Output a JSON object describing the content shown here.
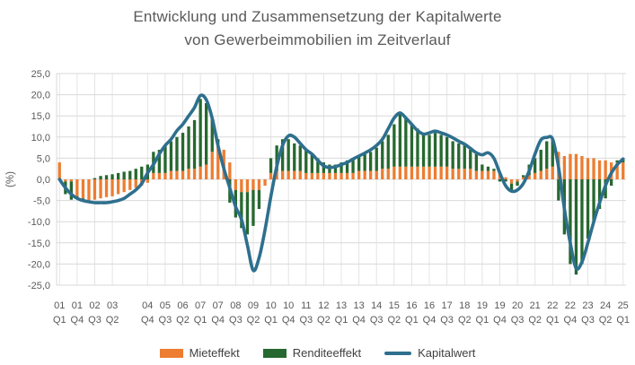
{
  "title": {
    "line1": "Entwicklung und Zusammensetzung der Kapitalwerte",
    "line2": "von Gewerbeimmobilien im Zeitverlauf"
  },
  "chart_data": {
    "type": "bar+line combo (stacked quarterly bars with smoothed line overlay)",
    "title": "Entwicklung und Zusammensetzung der Kapitalwerte von Gewerbeimmobilien im Zeitverlauf",
    "ylabel": "(%)",
    "ylim": [
      -25,
      25
    ],
    "grid": {
      "horizontal": true,
      "vertical": true
    },
    "legend_position": "bottom",
    "quarters": [
      "01Q1",
      "01Q2",
      "01Q3",
      "01Q4",
      "02Q1",
      "02Q2",
      "02Q3",
      "02Q4",
      "03Q1",
      "03Q2",
      "03Q3",
      "03Q4",
      "04Q1",
      "04Q2",
      "04Q3",
      "04Q4",
      "05Q1",
      "05Q2",
      "05Q3",
      "05Q4",
      "06Q1",
      "06Q2",
      "06Q3",
      "06Q4",
      "07Q1",
      "07Q2",
      "07Q3",
      "07Q4",
      "08Q1",
      "08Q2",
      "08Q3",
      "08Q4",
      "09Q1",
      "09Q2",
      "09Q3",
      "09Q4",
      "10Q1",
      "10Q2",
      "10Q3",
      "10Q4",
      "11Q1",
      "11Q2",
      "11Q3",
      "11Q4",
      "12Q1",
      "12Q2",
      "12Q3",
      "12Q4",
      "13Q1",
      "13Q2",
      "13Q3",
      "13Q4",
      "14Q1",
      "14Q2",
      "14Q3",
      "14Q4",
      "15Q1",
      "15Q2",
      "15Q3",
      "15Q4",
      "16Q1",
      "16Q2",
      "16Q3",
      "16Q4",
      "17Q1",
      "17Q2",
      "17Q3",
      "17Q4",
      "18Q1",
      "18Q2",
      "18Q3",
      "18Q4",
      "19Q1",
      "19Q2",
      "19Q3",
      "19Q4",
      "20Q1",
      "20Q2",
      "20Q3",
      "20Q4",
      "21Q1",
      "21Q2",
      "21Q3",
      "21Q4",
      "22Q1",
      "22Q2",
      "22Q3",
      "22Q4",
      "23Q1",
      "23Q2",
      "23Q3",
      "23Q4",
      "24Q1",
      "24Q2",
      "24Q3",
      "24Q4",
      "25Q1"
    ],
    "series": [
      {
        "name": "Mieteffekt",
        "type": "bar",
        "color": "#ED7D31",
        "values": [
          4.0,
          -0.5,
          -0.5,
          -4.0,
          -4.5,
          -5.0,
          -4.8,
          -4.5,
          -4.2,
          -4.0,
          -3.5,
          -3.0,
          -2.5,
          -2.0,
          -1.5,
          -0.8,
          1.5,
          1.5,
          1.5,
          2.0,
          2.0,
          2.0,
          2.5,
          2.5,
          3.0,
          3.5,
          6.5,
          8.5,
          7.0,
          4.0,
          -2.5,
          -3.0,
          -3.0,
          -2.5,
          -2.5,
          -1.5,
          1.5,
          2.0,
          2.0,
          2.0,
          2.0,
          2.0,
          1.5,
          1.5,
          1.5,
          1.5,
          1.5,
          1.5,
          1.5,
          1.5,
          1.5,
          2.0,
          2.0,
          2.0,
          2.0,
          2.5,
          2.5,
          3.0,
          3.0,
          3.0,
          3.0,
          3.0,
          3.0,
          3.0,
          3.0,
          3.0,
          3.0,
          2.5,
          2.5,
          2.5,
          2.5,
          2.0,
          2.0,
          2.0,
          2.0,
          1.5,
          0.5,
          -1.0,
          -0.5,
          0.5,
          1.0,
          1.5,
          2.0,
          2.5,
          3.0,
          6.5,
          5.5,
          6.0,
          6.0,
          5.5,
          5.0,
          5.0,
          4.5,
          4.5,
          4.0,
          4.0,
          4.0
        ]
      },
      {
        "name": "Renditeeffekt",
        "type": "bar",
        "color": "#26682F",
        "values": [
          0.0,
          -3.0,
          -4.3,
          -0.5,
          -0.3,
          0.0,
          0.3,
          0.8,
          1.0,
          1.2,
          1.5,
          1.8,
          2.0,
          2.5,
          3.0,
          3.5,
          5.0,
          5.5,
          6.5,
          7.0,
          8.0,
          9.0,
          10.0,
          11.5,
          16.0,
          14.5,
          8.0,
          1.0,
          0.0,
          -5.5,
          -6.5,
          -8.5,
          -10.0,
          -8.5,
          -4.5,
          0.0,
          3.5,
          6.0,
          7.5,
          7.5,
          6.5,
          6.0,
          5.5,
          4.5,
          3.5,
          2.5,
          2.0,
          2.0,
          2.5,
          3.0,
          3.5,
          3.5,
          4.0,
          4.5,
          5.5,
          6.5,
          8.0,
          10.0,
          12.5,
          11.5,
          10.0,
          9.0,
          8.0,
          7.5,
          8.0,
          7.5,
          7.0,
          6.5,
          6.0,
          5.5,
          4.5,
          4.0,
          1.5,
          1.0,
          0.5,
          -0.5,
          -0.5,
          -1.5,
          -1.0,
          0.5,
          2.5,
          3.5,
          5.0,
          6.5,
          6.5,
          -5.0,
          -13.0,
          -20.0,
          -22.5,
          -20.0,
          -14.0,
          -10.0,
          -7.0,
          -4.5,
          -1.5,
          0.5,
          1.0
        ]
      },
      {
        "name": "Kapitalwert",
        "type": "line",
        "color": "#2E6F8E",
        "values": [
          0.0,
          -2.0,
          -3.5,
          -4.5,
          -5.0,
          -5.3,
          -5.5,
          -5.5,
          -5.5,
          -5.3,
          -5.0,
          -4.5,
          -3.5,
          -2.5,
          -1.0,
          1.5,
          3.5,
          6.0,
          8.0,
          9.5,
          11.5,
          13.0,
          15.0,
          17.0,
          19.8,
          18.8,
          14.5,
          8.0,
          2.5,
          -2.0,
          -6.5,
          -9.5,
          -15.5,
          -21.5,
          -18.5,
          -12.0,
          -4.0,
          3.0,
          8.0,
          10.3,
          10.0,
          8.5,
          7.0,
          6.0,
          4.5,
          3.2,
          2.8,
          3.0,
          3.5,
          4.0,
          4.8,
          5.5,
          6.2,
          7.0,
          8.0,
          9.5,
          12.0,
          14.5,
          15.7,
          14.5,
          13.0,
          11.5,
          10.7,
          11.0,
          11.4,
          11.0,
          10.5,
          9.8,
          9.0,
          8.3,
          7.3,
          6.3,
          5.8,
          6.3,
          5.0,
          1.5,
          -1.5,
          -2.8,
          -2.5,
          -1.0,
          2.0,
          6.0,
          9.3,
          9.9,
          9.5,
          3.0,
          -7.0,
          -15.0,
          -21.0,
          -19.5,
          -15.0,
          -10.0,
          -5.5,
          -1.5,
          1.5,
          3.5,
          4.8
        ]
      }
    ],
    "yticks": [
      {
        "value": 25,
        "label": "25,0"
      },
      {
        "value": 20,
        "label": "20,0"
      },
      {
        "value": 15,
        "label": "15,0"
      },
      {
        "value": 10,
        "label": "10,0"
      },
      {
        "value": 5,
        "label": "5,0"
      },
      {
        "value": 0,
        "label": "0,0"
      },
      {
        "value": -5,
        "label": "-5,0"
      },
      {
        "value": -10,
        "label": "-10,0"
      },
      {
        "value": -15,
        "label": "-15,0"
      },
      {
        "value": -20,
        "label": "-20,0"
      },
      {
        "value": -25,
        "label": "-25,0"
      }
    ],
    "xticks": [
      {
        "index": 0,
        "year": "01",
        "quarter": "Q1"
      },
      {
        "index": 3,
        "year": "01",
        "quarter": "Q4"
      },
      {
        "index": 6,
        "year": "02",
        "quarter": "Q3"
      },
      {
        "index": 9,
        "year": "03",
        "quarter": "Q2"
      },
      {
        "index": 15,
        "year": "04",
        "quarter": "Q4"
      },
      {
        "index": 18,
        "year": "05",
        "quarter": "Q3"
      },
      {
        "index": 21,
        "year": "06",
        "quarter": "Q2"
      },
      {
        "index": 24,
        "year": "07",
        "quarter": "Q1"
      },
      {
        "index": 27,
        "year": "07",
        "quarter": "Q4"
      },
      {
        "index": 30,
        "year": "08",
        "quarter": "Q3"
      },
      {
        "index": 33,
        "year": "09",
        "quarter": "Q2"
      },
      {
        "index": 36,
        "year": "10",
        "quarter": "Q1"
      },
      {
        "index": 39,
        "year": "10",
        "quarter": "Q4"
      },
      {
        "index": 42,
        "year": "11",
        "quarter": "Q3"
      },
      {
        "index": 45,
        "year": "12",
        "quarter": "Q2"
      },
      {
        "index": 48,
        "year": "13",
        "quarter": "Q1"
      },
      {
        "index": 51,
        "year": "13",
        "quarter": "Q4"
      },
      {
        "index": 54,
        "year": "14",
        "quarter": "Q3"
      },
      {
        "index": 57,
        "year": "15",
        "quarter": "Q2"
      },
      {
        "index": 60,
        "year": "16",
        "quarter": "Q1"
      },
      {
        "index": 63,
        "year": "16",
        "quarter": "Q4"
      },
      {
        "index": 66,
        "year": "17",
        "quarter": "Q3"
      },
      {
        "index": 69,
        "year": "18",
        "quarter": "Q2"
      },
      {
        "index": 72,
        "year": "19",
        "quarter": "Q1"
      },
      {
        "index": 75,
        "year": "19",
        "quarter": "Q4"
      },
      {
        "index": 78,
        "year": "20",
        "quarter": "Q3"
      },
      {
        "index": 81,
        "year": "21",
        "quarter": "Q2"
      },
      {
        "index": 84,
        "year": "22",
        "quarter": "Q1"
      },
      {
        "index": 87,
        "year": "22",
        "quarter": "Q4"
      },
      {
        "index": 90,
        "year": "23",
        "quarter": "Q3"
      },
      {
        "index": 93,
        "year": "24",
        "quarter": "Q2"
      },
      {
        "index": 96,
        "year": "25",
        "quarter": "Q1"
      }
    ],
    "colors": {
      "title_text": "#595959",
      "tick_text": "#595959",
      "legend_text": "#3f3f3f",
      "gridline_h": "#D9D9D9",
      "gridline_v": "#E4E4E4"
    }
  }
}
